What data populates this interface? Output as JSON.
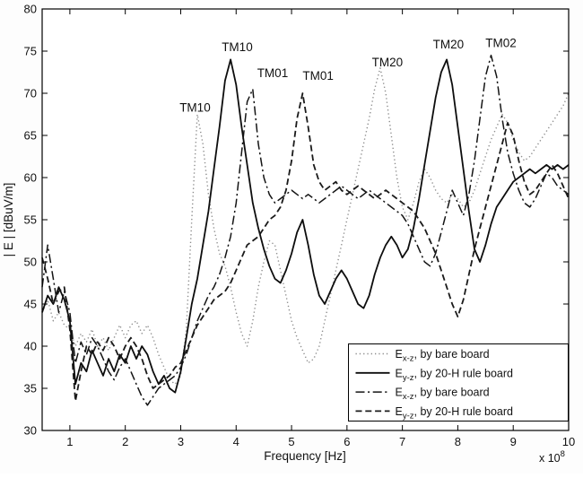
{
  "chart_data": {
    "type": "line",
    "title": "",
    "xlabel": "Frequency [Hz]",
    "x_multiplier_label": "x 10",
    "x_multiplier_exponent": "8",
    "ylabel": "| E | [dBuV/m]",
    "xlim": [
      0.5,
      10
    ],
    "ylim": [
      30,
      80
    ],
    "x_ticks": [
      1,
      2,
      3,
      4,
      5,
      6,
      7,
      8,
      9,
      10
    ],
    "y_ticks": [
      30,
      35,
      40,
      45,
      50,
      55,
      60,
      65,
      70,
      75,
      80
    ],
    "grid": false,
    "legend_position": "lower-right",
    "x_start": 0.5,
    "x_step": 0.1,
    "series": [
      {
        "name": "Ex-z, by bare board",
        "legend_prefix": "E",
        "legend_sub": "x-z",
        "legend_suffix": ", by bare board",
        "style": "dotted",
        "color": "#8c8c8c",
        "values": [
          44,
          45.5,
          43,
          44,
          42.5,
          42,
          40,
          41.5,
          40.5,
          42,
          40,
          41,
          39.5,
          41,
          42.5,
          41,
          42.5,
          43,
          41.5,
          42.5,
          41,
          39,
          37.5,
          36,
          35.5,
          36.5,
          42,
          55,
          67.5,
          64,
          58,
          54,
          51,
          49.5,
          47,
          44,
          41.5,
          40,
          43,
          47,
          50,
          52.5,
          52,
          49,
          46,
          43,
          41,
          39.5,
          38,
          38.5,
          40,
          43,
          46,
          49,
          52,
          55,
          58,
          61,
          64,
          67,
          70.5,
          73,
          70,
          65,
          60,
          56.5,
          55,
          57,
          59.5,
          61,
          60,
          58.5,
          57.5,
          57,
          58,
          57.5,
          56.5,
          57,
          58.5,
          60.5,
          62.5,
          64.5,
          66,
          67.5,
          66.5,
          64.5,
          63,
          62,
          62.5,
          63.5,
          64.5,
          65.5,
          66.5,
          67.5,
          68.5,
          70
        ]
      },
      {
        "name": "Ey-z, by 20-H rule board",
        "legend_prefix": "E",
        "legend_sub": "y-z",
        "legend_suffix": ", by 20-H rule board",
        "style": "solid",
        "color": "#0d0d0d",
        "values": [
          44,
          46,
          45,
          47,
          45.5,
          43,
          35.5,
          38,
          37,
          39.5,
          38,
          36.5,
          38.5,
          37,
          39,
          38,
          40,
          38.5,
          40,
          39,
          37,
          35.5,
          36.5,
          35,
          34.5,
          37,
          41,
          45,
          48,
          52,
          56,
          61,
          66,
          71.5,
          74,
          71,
          66,
          61.5,
          57,
          54,
          51.5,
          49.5,
          48,
          47.5,
          49,
          51,
          53.5,
          55,
          52,
          48.5,
          46,
          45,
          46.5,
          48,
          49,
          48,
          46.5,
          45,
          44.5,
          46,
          48.5,
          50.5,
          52,
          53,
          52,
          50.5,
          51.5,
          54,
          57.5,
          61.5,
          65.5,
          69.5,
          72.5,
          74,
          71,
          66,
          61,
          56,
          51.5,
          50,
          52,
          54.5,
          56.5,
          57.5,
          58.5,
          59.5,
          60,
          60.5,
          61,
          60.5,
          61,
          61.5,
          61,
          61.5,
          61,
          61.5
        ]
      },
      {
        "name": "Ex-z, by bare board",
        "legend_prefix": "E",
        "legend_sub": "x-z",
        "legend_suffix": ", by bare board",
        "style": "dashdot",
        "color": "#141414",
        "values": [
          47,
          52,
          48,
          44,
          46.5,
          44,
          38,
          40.5,
          39,
          41,
          40,
          38.5,
          37,
          36,
          37.5,
          38.5,
          37,
          35.5,
          34,
          33,
          34,
          35,
          35.5,
          36,
          36.5,
          37.5,
          39,
          41,
          43,
          44.5,
          46,
          47,
          48.5,
          50.5,
          53,
          57,
          63,
          69,
          70.5,
          64,
          60,
          58,
          57,
          57.5,
          58,
          58.5,
          58,
          57.5,
          58,
          57.5,
          57,
          57.5,
          58,
          58.5,
          59,
          58.5,
          58,
          57.5,
          58,
          58.5,
          58,
          57.5,
          57,
          56.5,
          56,
          55.5,
          54.5,
          53,
          51.5,
          50,
          49.5,
          51,
          53.5,
          56,
          58.5,
          57,
          55.5,
          58,
          62,
          67,
          72,
          74.5,
          72,
          67,
          63,
          60.5,
          58.5,
          57,
          56.5,
          57.5,
          59,
          60.5,
          60,
          59,
          58.5,
          58
        ]
      },
      {
        "name": "Ey-z, by 20-H rule board",
        "legend_prefix": "E",
        "legend_sub": "y-z",
        "legend_suffix": ", by 20-H rule board",
        "style": "dashed",
        "color": "#1a1a1a",
        "values": [
          50.5,
          48,
          45,
          46.5,
          47,
          42,
          33.5,
          37,
          40,
          39,
          40.5,
          39.5,
          41,
          40,
          38.5,
          40,
          41,
          40,
          38.5,
          36.5,
          35,
          35.5,
          36,
          36.5,
          37.5,
          38,
          39.5,
          41,
          42.5,
          43.5,
          44.5,
          45.5,
          46,
          46.5,
          47.5,
          49,
          50.5,
          52,
          52.5,
          53,
          54,
          55,
          55.5,
          56.5,
          58.5,
          62,
          67,
          70,
          66,
          61.5,
          59.5,
          58.5,
          59,
          59.5,
          58.5,
          58,
          58.5,
          59,
          58.5,
          58,
          57.5,
          58,
          58.5,
          58,
          57.5,
          57,
          56.5,
          56,
          55,
          54,
          52.5,
          51,
          49,
          47,
          45,
          43.5,
          45.5,
          48.5,
          51.5,
          54,
          56.5,
          59,
          61.5,
          64,
          66.5,
          65,
          62,
          59.5,
          58,
          58.5,
          59.5,
          60.5,
          61.5,
          60.5,
          59,
          57.5
        ]
      }
    ],
    "annotations": [
      {
        "text": "TM10",
        "x": 2.98,
        "y": 67.8
      },
      {
        "text": "TM10",
        "x": 3.74,
        "y": 75.0
      },
      {
        "text": "TM01",
        "x": 4.38,
        "y": 71.9
      },
      {
        "text": "TM01",
        "x": 5.2,
        "y": 71.6
      },
      {
        "text": "TM20",
        "x": 6.45,
        "y": 73.2
      },
      {
        "text": "TM20",
        "x": 7.55,
        "y": 75.3
      },
      {
        "text": "TM02",
        "x": 8.5,
        "y": 75.5
      }
    ]
  }
}
